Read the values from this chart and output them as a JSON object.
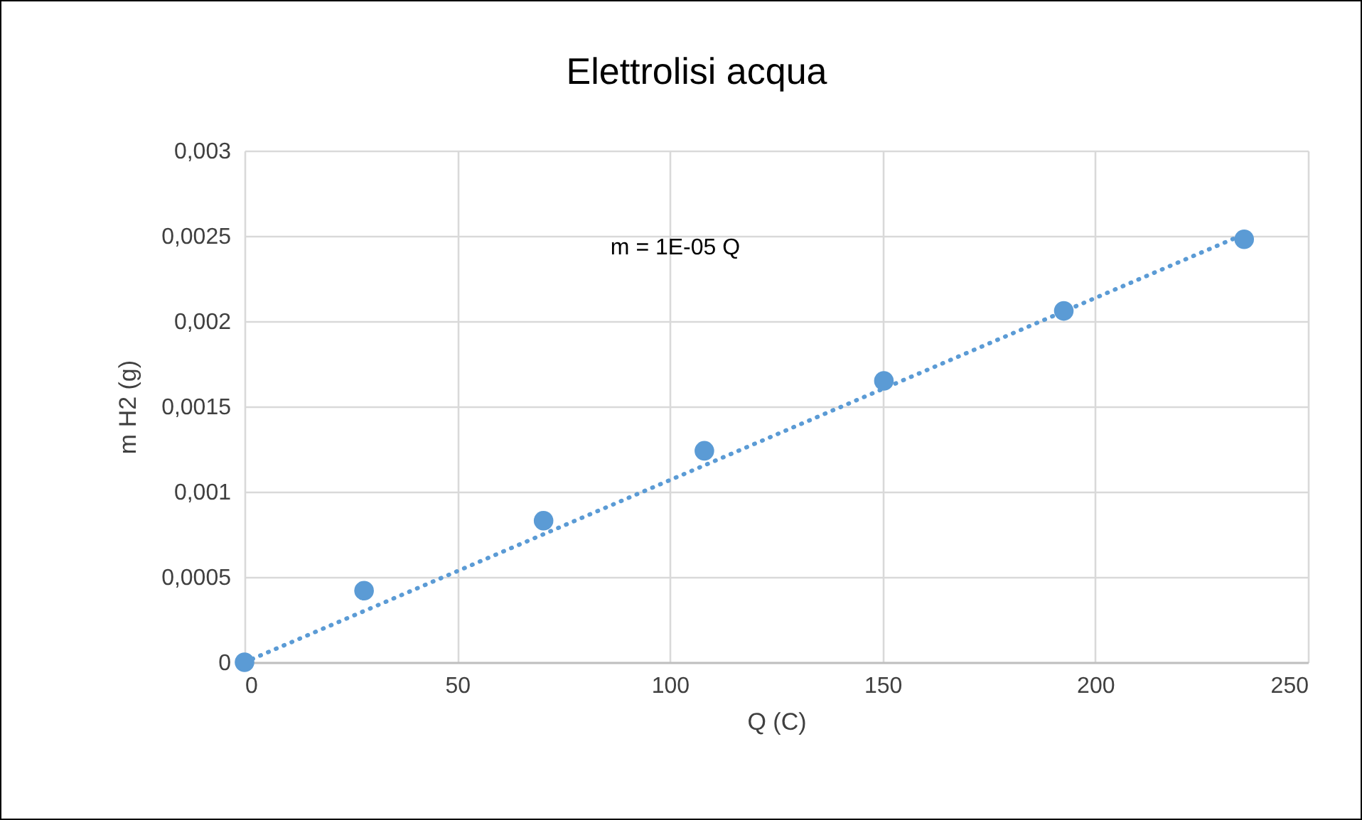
{
  "chart_data": {
    "type": "scatter",
    "title": "Elettrolisi acqua",
    "xlabel": "Q (C)",
    "ylabel": "m H2 (g)",
    "series": [
      {
        "type": "scatter",
        "marker": "circle",
        "color": "#5b9bd5",
        "x": [
          0,
          28.1,
          70.3,
          108.1,
          150.3,
          192.6,
          235
        ],
        "values": [
          0,
          0.00042,
          0.00083,
          0.00124,
          0.00165,
          0.00206,
          0.00248
        ]
      },
      {
        "type": "line",
        "marker": "none",
        "color": "#5b9bd5",
        "line_style": "dotted",
        "x": [
          0,
          235
        ],
        "values": [
          0,
          0.00251
        ]
      }
    ],
    "annotations": [
      "m = 1E-05 Q"
    ],
    "xlim": [
      0,
      250
    ],
    "xticks": [
      0,
      50,
      100,
      150,
      200,
      250
    ],
    "ylim": [
      0,
      0.003
    ],
    "yticks": [
      0,
      {
        "value": 0.0005,
        "label": "0,0005"
      },
      {
        "value": 0.001,
        "label": "0,001"
      },
      {
        "value": 0.0015,
        "label": "0,0015"
      },
      {
        "value": 0.002,
        "label": "0,002"
      },
      {
        "value": 0.0025,
        "label": "0,0025"
      },
      {
        "value": 0.003,
        "label": "0,003"
      }
    ],
    "grid": true
  }
}
